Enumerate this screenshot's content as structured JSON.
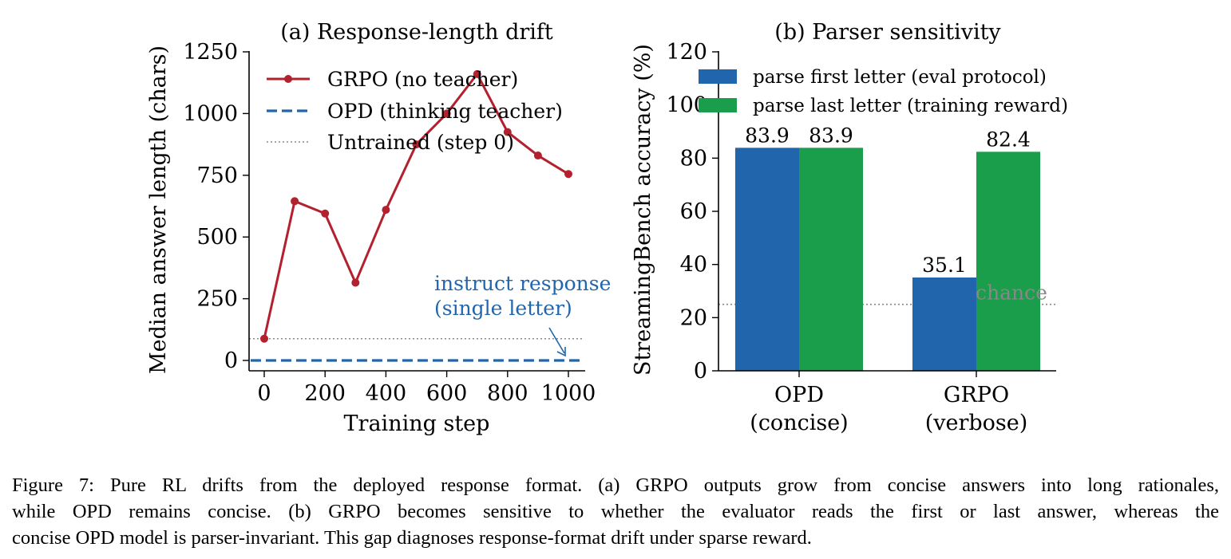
{
  "figure": {
    "caption_lines": [
      "Figure 7: Pure RL drifts from the deployed response format. (a) GRPO outputs grow from concise answers into long rationales,",
      "while OPD remains concise. (b) GRPO becomes sensitive to whether the evaluator reads the first or last answer, whereas the",
      "concise OPD model is parser-invariant. This gap diagnoses response-format drift under sparse reward."
    ]
  },
  "colors": {
    "grpo_red": "#b3202e",
    "opd_blue": "#2166ac",
    "bar_blue": "#2166ac",
    "bar_green": "#1b9e4b",
    "untrained_gray": "#888888",
    "chance_gray": "#888888"
  },
  "chart_data": [
    {
      "type": "line",
      "title": "(a) Response-length drift",
      "xlabel": "Training step",
      "ylabel": "Median answer length (chars)",
      "xlim": [
        -50,
        1050
      ],
      "ylim": [
        -20,
        1250
      ],
      "xticks": [
        0,
        200,
        400,
        600,
        800,
        1000
      ],
      "yticks": [
        0,
        250,
        500,
        750,
        1000,
        1250
      ],
      "legend_position": "top-left",
      "series": [
        {
          "name": "GRPO (no teacher)",
          "style": "solid-markers",
          "x": [
            0,
            100,
            200,
            300,
            400,
            500,
            600,
            700,
            800,
            900,
            1000
          ],
          "y": [
            88,
            645,
            595,
            315,
            610,
            875,
            1000,
            1160,
            925,
            830,
            755
          ]
        },
        {
          "name": "OPD (thinking teacher)",
          "style": "dashed",
          "x": [
            -50,
            1050
          ],
          "y": [
            0,
            0
          ]
        },
        {
          "name": "Untrained (step 0)",
          "style": "dotted",
          "x": [
            -50,
            1050
          ],
          "y": [
            88,
            88
          ]
        }
      ],
      "annotation": {
        "lines": [
          "instruct response",
          "(single letter)"
        ],
        "points_to": {
          "x": 1000,
          "y": 0
        }
      }
    },
    {
      "type": "bar",
      "title": "(b) Parser sensitivity",
      "ylabel": "StreamingBench accuracy (%)",
      "ylim": [
        0,
        120
      ],
      "yticks": [
        0,
        20,
        40,
        60,
        80,
        100,
        120
      ],
      "categories": [
        [
          "OPD",
          "(concise)"
        ],
        [
          "GRPO",
          "(verbose)"
        ]
      ],
      "legend_position": "top",
      "series": [
        {
          "name": "parse first letter (eval protocol)",
          "values": [
            83.9,
            35.1
          ]
        },
        {
          "name": "parse last letter (training reward)",
          "values": [
            83.9,
            82.4
          ]
        }
      ],
      "data_labels": [
        "83.9",
        "35.1",
        "83.9",
        "82.4"
      ],
      "reference_line": {
        "label": "chance",
        "y": 25
      }
    }
  ]
}
